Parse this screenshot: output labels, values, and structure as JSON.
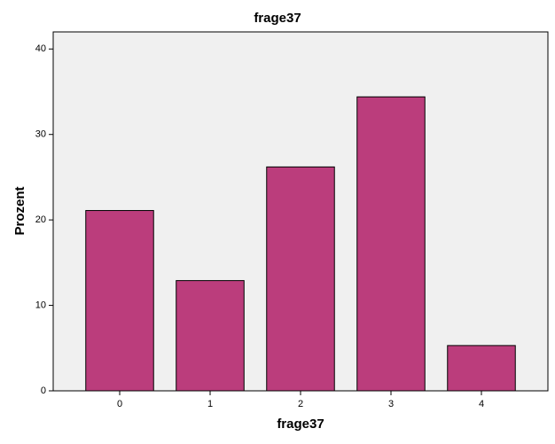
{
  "chart_data": {
    "type": "bar",
    "title": "frage37",
    "x_label": "frage37",
    "y_label": "Prozent",
    "categories": [
      "0",
      "1",
      "2",
      "3",
      "4"
    ],
    "values": [
      21.1,
      12.9,
      26.2,
      34.4,
      5.3
    ],
    "color": "#bb3d7c",
    "ylim": [
      0,
      42
    ],
    "yticks": [
      0,
      10,
      20,
      30,
      40
    ],
    "grid": false
  }
}
